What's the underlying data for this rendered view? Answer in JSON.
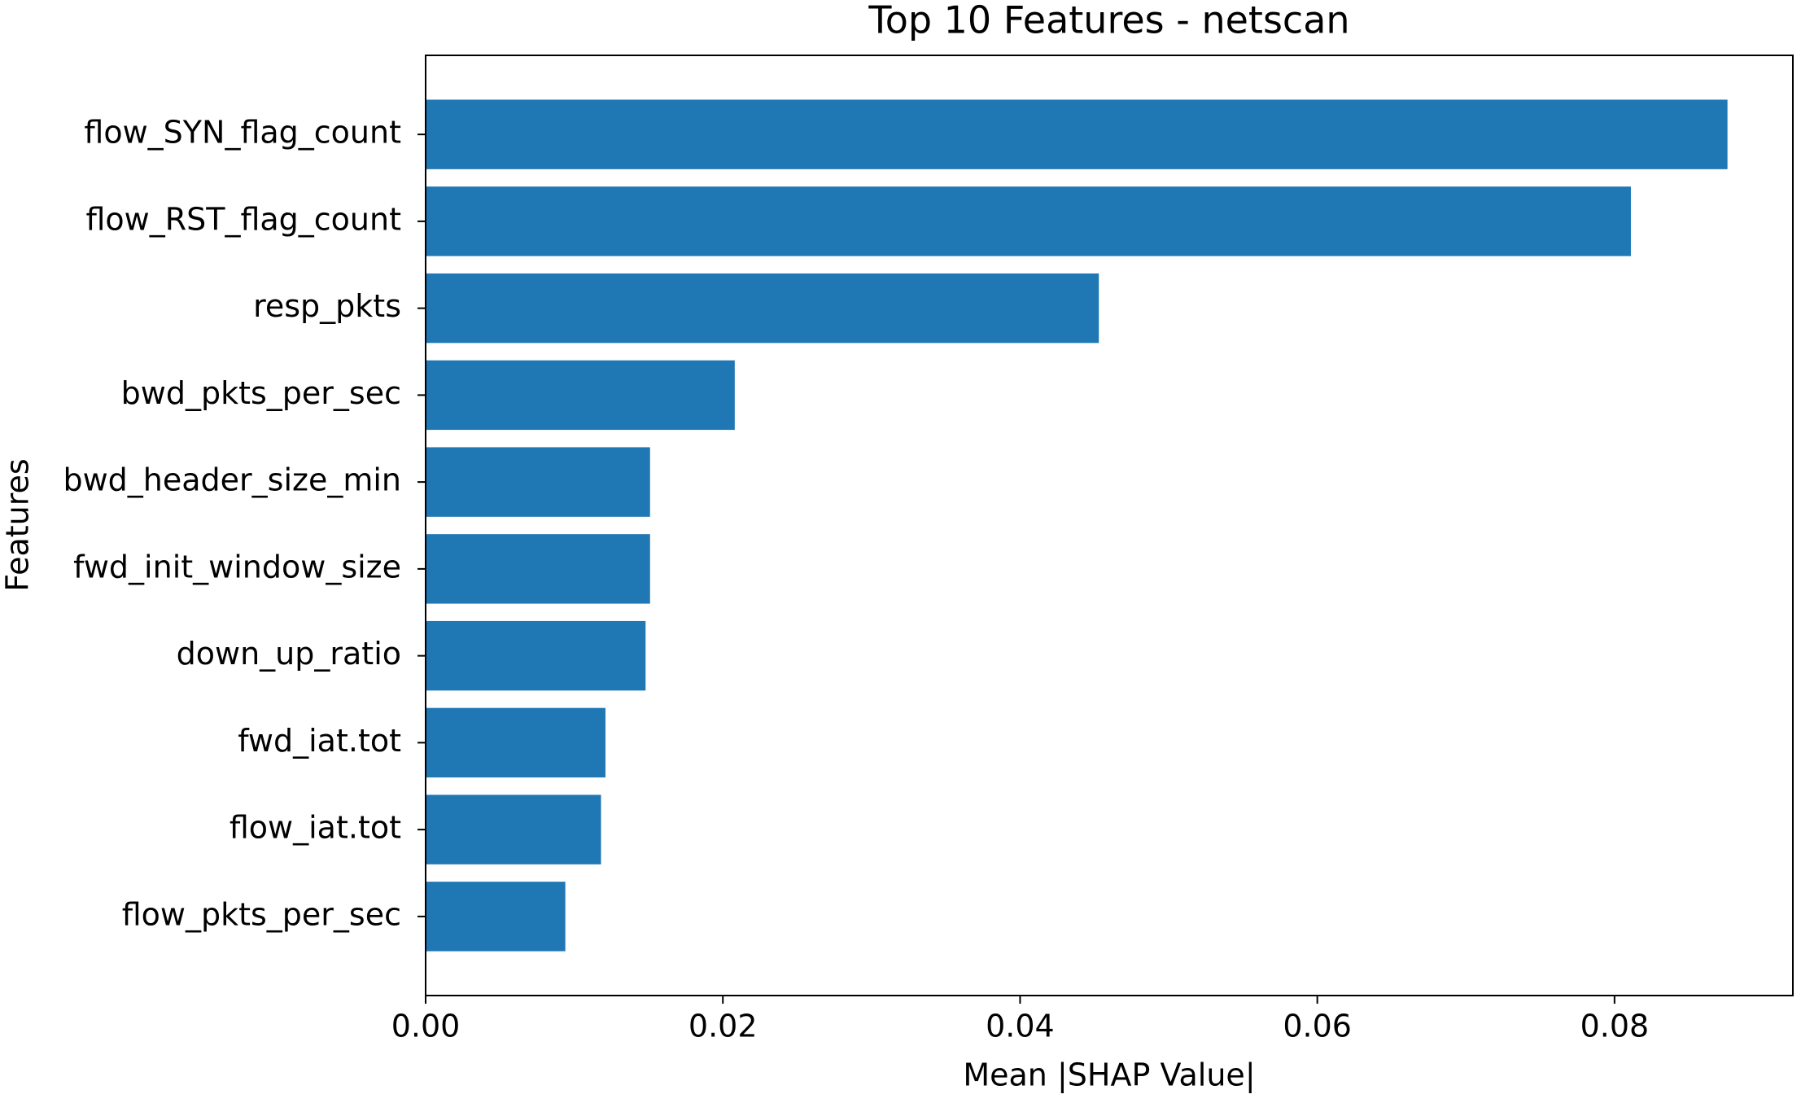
{
  "chart_data": {
    "type": "barh",
    "title": "Top 10 Features - netscan",
    "x_label": "Mean |SHAP Value|",
    "y_label": "Features",
    "categories": [
      "flow_SYN_flag_count",
      "flow_RST_flag_count",
      "resp_pkts",
      "bwd_pkts_per_sec",
      "bwd_header_size_min",
      "fwd_init_window_size",
      "down_up_ratio",
      "fwd_iat.tot",
      "flow_iat.tot",
      "flow_pkts_per_sec"
    ],
    "values": [
      0.0876,
      0.0811,
      0.0453,
      0.0208,
      0.0151,
      0.0151,
      0.0148,
      0.0121,
      0.0118,
      0.0094
    ],
    "color": "#1f77b4",
    "xlim": [
      0,
      0.092
    ],
    "xticks": [
      {
        "value": 0,
        "label": "0.00"
      },
      {
        "value": 0.02,
        "label": "0.02"
      },
      {
        "value": 0.04,
        "label": "0.04"
      },
      {
        "value": 0.06,
        "label": "0.06"
      },
      {
        "value": 0.08,
        "label": "0.08"
      }
    ],
    "grid": false
  }
}
